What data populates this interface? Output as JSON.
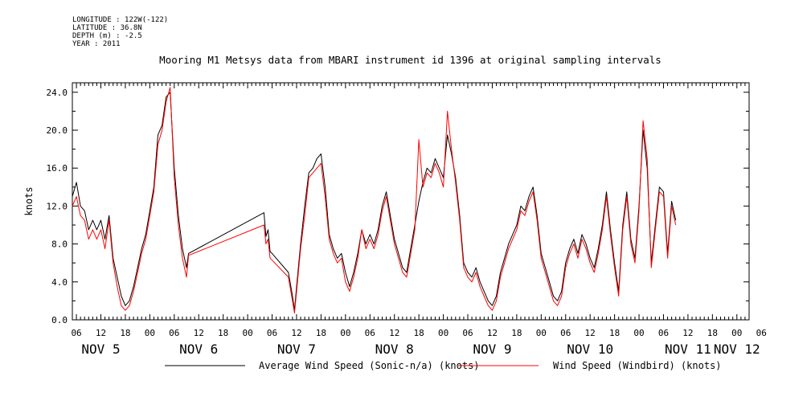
{
  "header": {
    "longitude": "LONGITUDE : 122W(-122)",
    "latitude": "LATITUDE : 36.8N",
    "depth": "DEPTH (m) : -2.5",
    "year": "YEAR : 2011"
  },
  "chart_data": {
    "type": "line",
    "title": "Mooring M1 Metsys data from MBARI instrument id 1396 at original sampling intervals",
    "xlabel": "",
    "ylabel": "knots",
    "x_unit": "hours since 2011-11-05 00:00",
    "xlim": [
      5,
      171
    ],
    "ylim": [
      0,
      25
    ],
    "y_ticks": [
      "0.0",
      "4.0",
      "8.0",
      "12.0",
      "16.0",
      "20.0",
      "24.0"
    ],
    "x_hour_ticks": [
      "06",
      "12",
      "18",
      "00",
      "06",
      "12",
      "18",
      "00",
      "06",
      "12",
      "18",
      "00",
      "06",
      "12",
      "18",
      "00",
      "06",
      "12",
      "18",
      "00",
      "06",
      "12",
      "18",
      "00",
      "06",
      "12",
      "18",
      "00",
      "06"
    ],
    "day_labels": [
      {
        "x": 12,
        "label": "NOV  5"
      },
      {
        "x": 36,
        "label": "NOV  6"
      },
      {
        "x": 60,
        "label": "NOV  7"
      },
      {
        "x": 84,
        "label": "NOV  8"
      },
      {
        "x": 108,
        "label": "NOV  9"
      },
      {
        "x": 132,
        "label": "NOV 10"
      },
      {
        "x": 156,
        "label": "NOV 11"
      },
      {
        "x": 168,
        "label": "NOV 12"
      }
    ],
    "series": [
      {
        "name": "Average Wind Speed (Sonic-n/a) (knots)",
        "color": "#000000",
        "points": [
          [
            5,
            13.0
          ],
          [
            6,
            14.5
          ],
          [
            7,
            12.0
          ],
          [
            8,
            11.5
          ],
          [
            9,
            9.5
          ],
          [
            10,
            10.5
          ],
          [
            11,
            9.5
          ],
          [
            12,
            10.5
          ],
          [
            13,
            8.5
          ],
          [
            14,
            11.0
          ],
          [
            15,
            6.5
          ],
          [
            16,
            4.5
          ],
          [
            17,
            2.5
          ],
          [
            18,
            1.5
          ],
          [
            19,
            2.0
          ],
          [
            20,
            3.5
          ],
          [
            21,
            5.5
          ],
          [
            22,
            7.5
          ],
          [
            23,
            9.0
          ],
          [
            24,
            11.5
          ],
          [
            25,
            14.0
          ],
          [
            26,
            19.5
          ],
          [
            27,
            20.5
          ],
          [
            28,
            23.5
          ],
          [
            29,
            24.0
          ],
          [
            30,
            16.0
          ],
          [
            31,
            11.0
          ],
          [
            32,
            7.5
          ],
          [
            33,
            5.5
          ],
          [
            33.5,
            7.0
          ],
          [
            52,
            11.3
          ],
          [
            52.5,
            8.8
          ],
          [
            53,
            9.5
          ],
          [
            53.5,
            7.2
          ],
          [
            54,
            7.0
          ],
          [
            58,
            5.0
          ],
          [
            59,
            2.5
          ],
          [
            59.5,
            1.0
          ],
          [
            60,
            3.5
          ],
          [
            61,
            8.0
          ],
          [
            62,
            12.0
          ],
          [
            63,
            15.5
          ],
          [
            64,
            16.0
          ],
          [
            65,
            17.0
          ],
          [
            66,
            17.5
          ],
          [
            67,
            14.0
          ],
          [
            68,
            9.0
          ],
          [
            69,
            7.5
          ],
          [
            70,
            6.5
          ],
          [
            71,
            7.0
          ],
          [
            72,
            5.0
          ],
          [
            73,
            3.5
          ],
          [
            74,
            5.0
          ],
          [
            75,
            7.0
          ],
          [
            76,
            9.5
          ],
          [
            77,
            8.0
          ],
          [
            78,
            9.0
          ],
          [
            79,
            8.0
          ],
          [
            80,
            9.5
          ],
          [
            81,
            12.0
          ],
          [
            82,
            13.5
          ],
          [
            83,
            11.0
          ],
          [
            84,
            8.5
          ],
          [
            85,
            7.0
          ],
          [
            86,
            5.5
          ],
          [
            87,
            5.0
          ],
          [
            88,
            7.5
          ],
          [
            89,
            10.0
          ],
          [
            90,
            12.5
          ],
          [
            91,
            14.5
          ],
          [
            92,
            16.0
          ],
          [
            93,
            15.5
          ],
          [
            94,
            17.0
          ],
          [
            95,
            16.0
          ],
          [
            96,
            15.0
          ],
          [
            97,
            19.5
          ],
          [
            98,
            17.5
          ],
          [
            99,
            15.0
          ],
          [
            100,
            11.0
          ],
          [
            101,
            6.0
          ],
          [
            102,
            5.0
          ],
          [
            103,
            4.5
          ],
          [
            104,
            5.5
          ],
          [
            105,
            4.0
          ],
          [
            106,
            3.0
          ],
          [
            107,
            2.0
          ],
          [
            108,
            1.5
          ],
          [
            109,
            2.5
          ],
          [
            110,
            5.0
          ],
          [
            111,
            6.5
          ],
          [
            112,
            8.0
          ],
          [
            113,
            9.0
          ],
          [
            114,
            10.0
          ],
          [
            115,
            12.0
          ],
          [
            116,
            11.5
          ],
          [
            117,
            13.0
          ],
          [
            118,
            14.0
          ],
          [
            119,
            11.0
          ],
          [
            120,
            7.0
          ],
          [
            121,
            5.5
          ],
          [
            122,
            4.0
          ],
          [
            123,
            2.5
          ],
          [
            124,
            2.0
          ],
          [
            125,
            3.0
          ],
          [
            126,
            6.0
          ],
          [
            127,
            7.5
          ],
          [
            128,
            8.5
          ],
          [
            129,
            7.0
          ],
          [
            130,
            9.0
          ],
          [
            131,
            8.0
          ],
          [
            132,
            6.5
          ],
          [
            133,
            5.5
          ],
          [
            134,
            7.5
          ],
          [
            135,
            10.0
          ],
          [
            136,
            13.5
          ],
          [
            137,
            9.5
          ],
          [
            138,
            6.0
          ],
          [
            139,
            3.0
          ],
          [
            140,
            10.0
          ],
          [
            141,
            13.5
          ],
          [
            142,
            8.5
          ],
          [
            143,
            6.5
          ],
          [
            144,
            12.0
          ],
          [
            145,
            20.0
          ],
          [
            146,
            16.0
          ],
          [
            147,
            6.0
          ],
          [
            148,
            10.0
          ],
          [
            149,
            14.0
          ],
          [
            150,
            13.5
          ],
          [
            151,
            7.0
          ],
          [
            152,
            12.5
          ],
          [
            153,
            10.5
          ]
        ]
      },
      {
        "name": "Wind Speed (Windbird) (knots)",
        "color": "#ff0000",
        "points": [
          [
            5,
            12.0
          ],
          [
            6,
            13.0
          ],
          [
            7,
            11.0
          ],
          [
            8,
            10.5
          ],
          [
            9,
            8.5
          ],
          [
            10,
            9.5
          ],
          [
            11,
            8.5
          ],
          [
            12,
            9.5
          ],
          [
            13,
            7.5
          ],
          [
            14,
            10.5
          ],
          [
            15,
            6.0
          ],
          [
            16,
            3.5
          ],
          [
            17,
            1.5
          ],
          [
            18,
            1.0
          ],
          [
            19,
            1.5
          ],
          [
            20,
            3.0
          ],
          [
            21,
            5.0
          ],
          [
            22,
            7.0
          ],
          [
            23,
            8.5
          ],
          [
            24,
            11.0
          ],
          [
            25,
            13.5
          ],
          [
            26,
            18.5
          ],
          [
            27,
            20.0
          ],
          [
            28,
            23.0
          ],
          [
            29,
            24.5
          ],
          [
            30,
            15.0
          ],
          [
            31,
            10.0
          ],
          [
            32,
            6.5
          ],
          [
            33,
            4.5
          ],
          [
            33.5,
            6.8
          ],
          [
            52,
            10.0
          ],
          [
            52.5,
            8.0
          ],
          [
            53,
            8.5
          ],
          [
            53.5,
            6.5
          ],
          [
            54,
            6.3
          ],
          [
            58,
            4.5
          ],
          [
            59,
            2.0
          ],
          [
            59.5,
            0.7
          ],
          [
            60,
            3.0
          ],
          [
            61,
            7.5
          ],
          [
            62,
            11.0
          ],
          [
            63,
            15.0
          ],
          [
            64,
            15.5
          ],
          [
            65,
            16.0
          ],
          [
            66,
            16.5
          ],
          [
            67,
            13.0
          ],
          [
            68,
            8.5
          ],
          [
            69,
            7.0
          ],
          [
            70,
            6.0
          ],
          [
            71,
            6.5
          ],
          [
            72,
            4.0
          ],
          [
            73,
            3.0
          ],
          [
            74,
            4.5
          ],
          [
            75,
            6.5
          ],
          [
            76,
            9.5
          ],
          [
            77,
            7.5
          ],
          [
            78,
            8.5
          ],
          [
            79,
            7.5
          ],
          [
            80,
            9.0
          ],
          [
            81,
            11.5
          ],
          [
            82,
            13.0
          ],
          [
            83,
            10.5
          ],
          [
            84,
            8.0
          ],
          [
            85,
            6.5
          ],
          [
            86,
            5.0
          ],
          [
            87,
            4.5
          ],
          [
            88,
            7.0
          ],
          [
            89,
            9.5
          ],
          [
            90,
            19.0
          ],
          [
            91,
            14.0
          ],
          [
            92,
            15.5
          ],
          [
            93,
            15.0
          ],
          [
            94,
            16.5
          ],
          [
            95,
            15.5
          ],
          [
            96,
            14.0
          ],
          [
            97,
            22.0
          ],
          [
            98,
            18.0
          ],
          [
            99,
            14.5
          ],
          [
            100,
            10.5
          ],
          [
            101,
            5.5
          ],
          [
            102,
            4.5
          ],
          [
            103,
            4.0
          ],
          [
            104,
            5.0
          ],
          [
            105,
            3.5
          ],
          [
            106,
            2.5
          ],
          [
            107,
            1.5
          ],
          [
            108,
            1.0
          ],
          [
            109,
            2.0
          ],
          [
            110,
            4.5
          ],
          [
            111,
            6.0
          ],
          [
            112,
            7.5
          ],
          [
            113,
            8.5
          ],
          [
            114,
            9.5
          ],
          [
            115,
            11.5
          ],
          [
            116,
            11.0
          ],
          [
            117,
            12.5
          ],
          [
            118,
            13.5
          ],
          [
            119,
            10.5
          ],
          [
            120,
            6.5
          ],
          [
            121,
            5.0
          ],
          [
            122,
            3.5
          ],
          [
            123,
            2.0
          ],
          [
            124,
            1.5
          ],
          [
            125,
            2.5
          ],
          [
            126,
            5.5
          ],
          [
            127,
            7.0
          ],
          [
            128,
            8.0
          ],
          [
            129,
            6.5
          ],
          [
            130,
            8.5
          ],
          [
            131,
            7.5
          ],
          [
            132,
            6.0
          ],
          [
            133,
            5.0
          ],
          [
            134,
            7.0
          ],
          [
            135,
            9.5
          ],
          [
            136,
            13.0
          ],
          [
            137,
            9.0
          ],
          [
            138,
            5.5
          ],
          [
            139,
            2.5
          ],
          [
            140,
            9.5
          ],
          [
            141,
            13.0
          ],
          [
            142,
            8.0
          ],
          [
            143,
            6.0
          ],
          [
            144,
            11.5
          ],
          [
            145,
            21.0
          ],
          [
            146,
            17.0
          ],
          [
            147,
            5.5
          ],
          [
            148,
            9.5
          ],
          [
            149,
            13.5
          ],
          [
            150,
            13.0
          ],
          [
            151,
            6.5
          ],
          [
            152,
            12.0
          ],
          [
            153,
            10.0
          ]
        ]
      }
    ],
    "grid": false,
    "legend_position": "bottom"
  }
}
